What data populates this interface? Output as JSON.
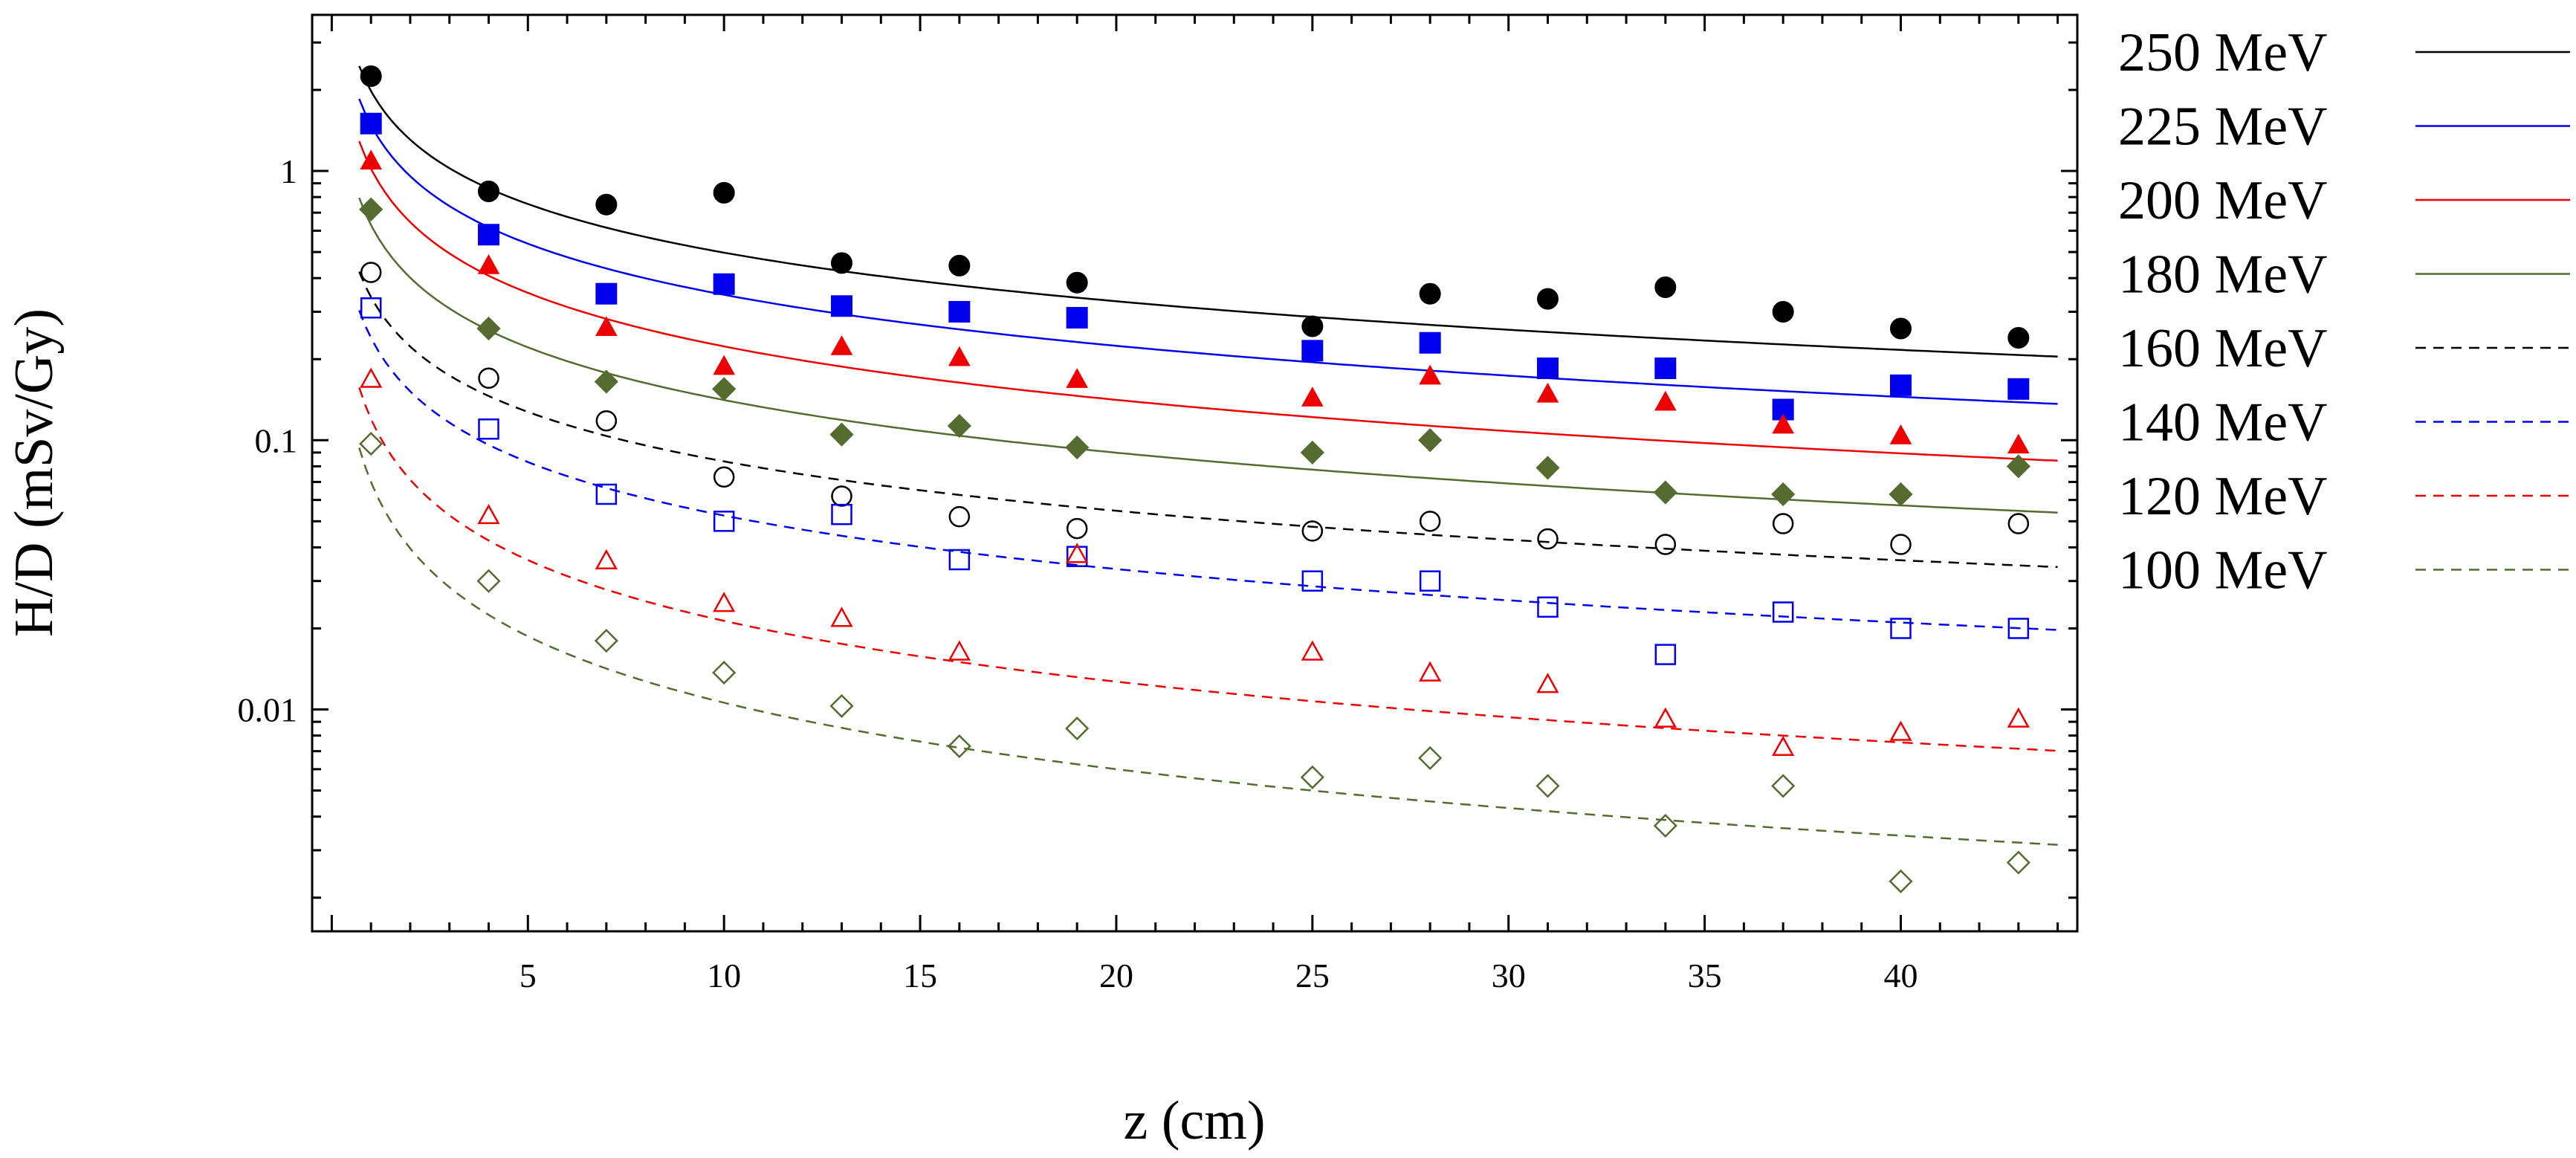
{
  "chart_data": {
    "type": "scatter",
    "title": "",
    "xlabel": "z (cm)",
    "ylabel": "H/D (mSv/Gy)",
    "y_scale": "log",
    "xlim": [
      -0.5,
      44.5
    ],
    "ylim": [
      0.0015,
      3.8
    ],
    "x_ticks": [
      5,
      10,
      15,
      20,
      25,
      30,
      35,
      40
    ],
    "y_ticks": [
      0.01,
      0.1,
      1
    ],
    "y_tick_labels": [
      "0.01",
      "0.1",
      "1"
    ],
    "grid": false,
    "legend_position": "outside-right",
    "x": [
      1,
      4,
      7,
      10,
      13,
      16,
      19,
      25,
      28,
      31,
      34,
      37,
      40,
      43
    ],
    "series": [
      {
        "name": "250 MeV",
        "color": "#000000",
        "line_style": "solid",
        "marker": "circle",
        "filled": true,
        "values": [
          2.25,
          0.84,
          0.75,
          0.83,
          0.455,
          0.445,
          0.385,
          0.265,
          0.35,
          0.335,
          0.37,
          0.3,
          0.26,
          0.24
        ],
        "fit": {
          "a": 1.98,
          "b": 0.6
        }
      },
      {
        "name": "225 MeV",
        "color": "#0000ee",
        "line_style": "solid",
        "marker": "square",
        "filled": true,
        "values": [
          1.5,
          0.58,
          0.35,
          0.38,
          0.315,
          0.3,
          0.285,
          0.215,
          0.23,
          0.185,
          0.185,
          0.13,
          0.16,
          0.155
        ],
        "fit": {
          "a": 1.48,
          "b": 0.63
        }
      },
      {
        "name": "200 MeV",
        "color": "#ee0000",
        "line_style": "solid",
        "marker": "triangle",
        "filled": true,
        "values": [
          1.1,
          0.45,
          0.265,
          0.19,
          0.225,
          0.205,
          0.17,
          0.145,
          0.175,
          0.15,
          0.14,
          0.115,
          0.105,
          0.097
        ],
        "fit": {
          "a": 1.02,
          "b": 0.66
        }
      },
      {
        "name": "180 MeV",
        "color": "#556b2f",
        "line_style": "solid",
        "marker": "diamond",
        "filled": true,
        "values": [
          0.72,
          0.26,
          0.165,
          0.155,
          0.105,
          0.113,
          0.094,
          0.09,
          0.1,
          0.079,
          0.064,
          0.063,
          0.063,
          0.08
        ],
        "fit": {
          "a": 0.63,
          "b": 0.65
        }
      },
      {
        "name": "160 MeV",
        "color": "#000000",
        "line_style": "dashed",
        "marker": "circle",
        "filled": false,
        "values": [
          0.42,
          0.17,
          0.118,
          0.073,
          0.062,
          0.052,
          0.047,
          0.046,
          0.05,
          0.043,
          0.041,
          0.049,
          0.041,
          0.049
        ],
        "fit": {
          "a": 0.34,
          "b": 0.61
        }
      },
      {
        "name": "140 MeV",
        "color": "#0000ee",
        "line_style": "dashed",
        "marker": "square",
        "filled": false,
        "values": [
          0.31,
          0.11,
          0.063,
          0.05,
          0.053,
          0.036,
          0.037,
          0.03,
          0.03,
          0.024,
          0.016,
          0.023,
          0.02,
          0.02
        ],
        "fit": {
          "a": 0.24,
          "b": 0.66
        }
      },
      {
        "name": "120 MeV",
        "color": "#ee0000",
        "line_style": "dashed",
        "marker": "triangle",
        "filled": false,
        "values": [
          0.17,
          0.053,
          0.036,
          0.025,
          0.022,
          0.0165,
          0.038,
          0.0165,
          0.0138,
          0.0125,
          0.0093,
          0.0073,
          0.0083,
          0.0093
        ],
        "fit": {
          "a": 0.12,
          "b": 0.75
        }
      },
      {
        "name": "100 MeV",
        "color": "#556b2f",
        "line_style": "dashed",
        "marker": "diamond",
        "filled": false,
        "values": [
          0.097,
          0.03,
          0.018,
          0.0137,
          0.0103,
          0.0073,
          0.0085,
          0.0056,
          0.0066,
          0.0052,
          0.0037,
          0.0052,
          0.0023,
          0.0027
        ],
        "fit": {
          "a": 0.07,
          "b": 0.82
        }
      }
    ]
  }
}
